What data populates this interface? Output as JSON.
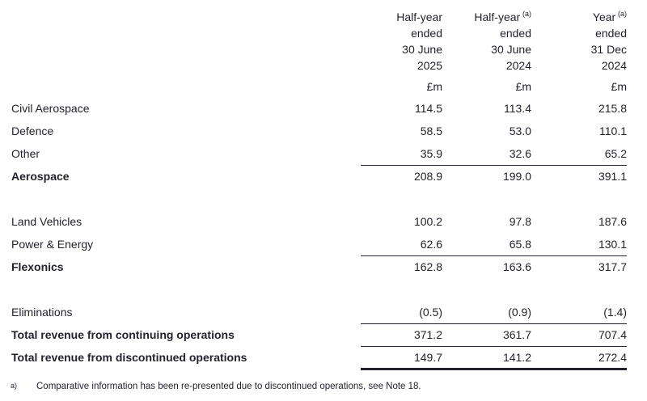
{
  "table": {
    "columns": [
      {
        "line1": "Half-year",
        "sup": "",
        "line2": "ended",
        "line3": "30 June",
        "line4": "2025",
        "unit": "£m"
      },
      {
        "line1": "Half-year",
        "sup": "(a)",
        "line2": "ended",
        "line3": "30 June",
        "line4": "2024",
        "unit": "£m"
      },
      {
        "line1": "Year",
        "sup": "(a)",
        "line2": "ended",
        "line3": "31 Dec",
        "line4": "2024",
        "unit": "£m"
      }
    ],
    "rows": [
      {
        "label": "Civil Aerospace",
        "values": [
          "114.5",
          "113.4",
          "215.8"
        ]
      },
      {
        "label": "Defence",
        "values": [
          "58.5",
          "53.0",
          "110.1"
        ]
      },
      {
        "label": "Other",
        "values": [
          "35.9",
          "32.6",
          "65.2"
        ]
      },
      {
        "label": "Aerospace",
        "values": [
          "208.9",
          "199.0",
          "391.1"
        ]
      },
      {
        "label": "Land Vehicles",
        "values": [
          "100.2",
          "97.8",
          "187.6"
        ]
      },
      {
        "label": "Power & Energy",
        "values": [
          "62.6",
          "65.8",
          "130.1"
        ]
      },
      {
        "label": "Flexonics",
        "values": [
          "162.8",
          "163.6",
          "317.7"
        ]
      },
      {
        "label": "Eliminations",
        "values": [
          "(0.5)",
          "(0.9)",
          "(1.4)"
        ]
      },
      {
        "label": "Total revenue from continuing operations",
        "values": [
          "371.2",
          "361.7",
          "707.4"
        ]
      },
      {
        "label": "Total revenue from discontinued operations",
        "values": [
          "149.7",
          "141.2",
          "272.4"
        ]
      }
    ]
  },
  "footnote": {
    "marker": "a)",
    "text": "Comparative information has been re-presented due to discontinued operations, see Note 18."
  },
  "colors": {
    "text": "#232330",
    "rule": "#232330",
    "background": "#ffffff"
  }
}
